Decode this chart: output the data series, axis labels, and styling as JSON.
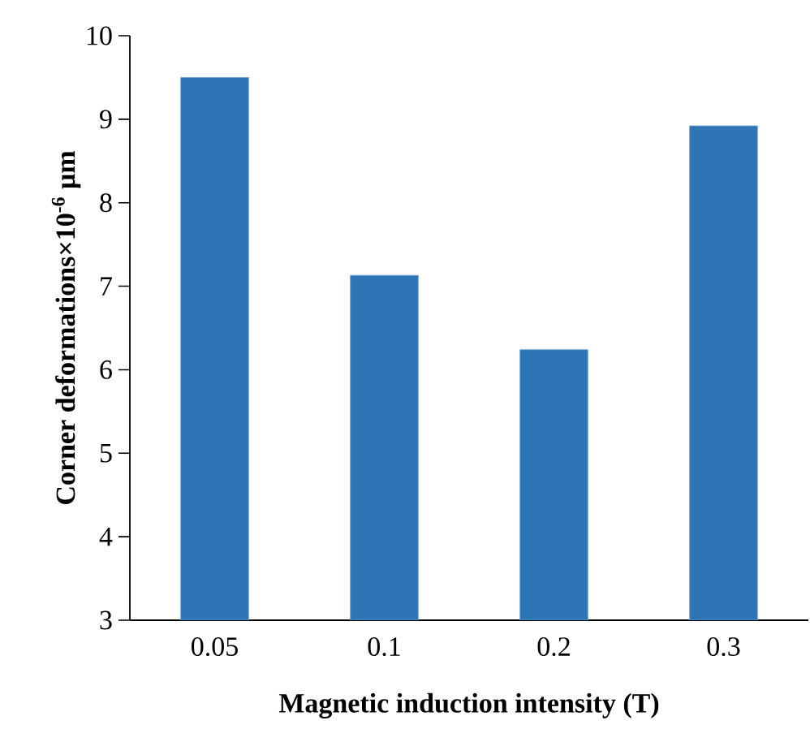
{
  "chart_data": {
    "type": "bar",
    "xlabel": "Magnetic induction intensity (T)",
    "ylabel": "Corner deformations×10$^{-6}$ μm",
    "categories": [
      "0.05",
      "0.1",
      "0.2",
      "0.3"
    ],
    "values": [
      9.5,
      7.13,
      6.24,
      8.92
    ],
    "color": "#2e75b6",
    "ylim": [
      3,
      10
    ],
    "yticks": [
      3,
      4,
      5,
      6,
      7,
      8,
      9,
      10
    ],
    "grid": false
  }
}
